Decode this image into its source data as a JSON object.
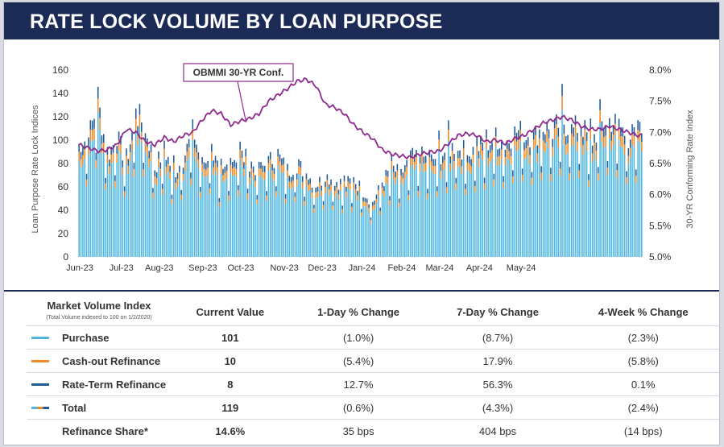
{
  "header": {
    "title": "RATE LOCK VOLUME BY LOAN PURPOSE"
  },
  "chart_data": {
    "type": "bar",
    "title": "RATE LOCK VOLUME BY LOAN PURPOSE",
    "ylabel": "Loan Purpose Rate Lock Indices",
    "y2label": "30-YR Conforming Rate Index",
    "ylim": [
      0,
      160
    ],
    "y2lim": [
      5.0,
      8.0
    ],
    "yticks": [
      "0",
      "20",
      "40",
      "60",
      "80",
      "100",
      "120",
      "140",
      "160"
    ],
    "y2ticks": [
      "5.0%",
      "5.5%",
      "6.0%",
      "6.5%",
      "7.0%",
      "7.5%",
      "8.0%"
    ],
    "xticks": [
      "Jun-23",
      "Jul-23",
      "Aug-23",
      "Sep-23",
      "Oct-23",
      "Nov-23",
      "Dec-23",
      "Jan-24",
      "Feb-24",
      "Mar-24",
      "Apr-24",
      "May-24"
    ],
    "annotation": "OBMMI 30-YR Conf.",
    "stacked": true,
    "grid": false,
    "series_colors": {
      "Purchase": "#4fb6e3",
      "Cash-out Refinance": "#f08a24",
      "Rate-Term Refinance": "#1f5a96",
      "OBMMI 30-YR Conf.": "#8e2a8e"
    },
    "total_anchors": [
      [
        0,
        95
      ],
      [
        5,
        100
      ],
      [
        10,
        130
      ],
      [
        15,
        85
      ],
      [
        20,
        100
      ],
      [
        25,
        80
      ],
      [
        30,
        120
      ],
      [
        35,
        110
      ],
      [
        40,
        75
      ],
      [
        45,
        90
      ],
      [
        50,
        70
      ],
      [
        55,
        82
      ],
      [
        60,
        105
      ],
      [
        65,
        78
      ],
      [
        70,
        90
      ],
      [
        75,
        65
      ],
      [
        80,
        82
      ],
      [
        85,
        86
      ],
      [
        90,
        80
      ],
      [
        95,
        72
      ],
      [
        100,
        80
      ],
      [
        105,
        85
      ],
      [
        110,
        72
      ],
      [
        115,
        78
      ],
      [
        120,
        70
      ],
      [
        125,
        60
      ],
      [
        130,
        68
      ],
      [
        135,
        65
      ],
      [
        140,
        60
      ],
      [
        145,
        65
      ],
      [
        150,
        55
      ],
      [
        155,
        45
      ],
      [
        160,
        62
      ],
      [
        165,
        75
      ],
      [
        170,
        68
      ],
      [
        175,
        82
      ],
      [
        180,
        85
      ],
      [
        185,
        80
      ],
      [
        190,
        85
      ],
      [
        195,
        90
      ],
      [
        200,
        95
      ],
      [
        205,
        85
      ],
      [
        210,
        92
      ],
      [
        215,
        95
      ],
      [
        220,
        100
      ],
      [
        225,
        95
      ],
      [
        230,
        105
      ],
      [
        235,
        105
      ],
      [
        240,
        100
      ],
      [
        245,
        110
      ],
      [
        250,
        105
      ],
      [
        255,
        115
      ],
      [
        260,
        105
      ],
      [
        265,
        112
      ],
      [
        270,
        95
      ],
      [
        275,
        110
      ],
      [
        280,
        115
      ],
      [
        285,
        110
      ],
      [
        290,
        100
      ],
      [
        295,
        105
      ]
    ],
    "rate_anchors": [
      [
        0,
        6.8
      ],
      [
        5,
        6.75
      ],
      [
        10,
        6.7
      ],
      [
        15,
        6.72
      ],
      [
        20,
        6.8
      ],
      [
        25,
        7.05
      ],
      [
        30,
        7.0
      ],
      [
        35,
        6.85
      ],
      [
        40,
        6.8
      ],
      [
        45,
        6.92
      ],
      [
        50,
        6.85
      ],
      [
        55,
        6.95
      ],
      [
        60,
        7.0
      ],
      [
        65,
        7.2
      ],
      [
        70,
        7.35
      ],
      [
        75,
        7.3
      ],
      [
        80,
        7.12
      ],
      [
        85,
        7.18
      ],
      [
        90,
        7.22
      ],
      [
        95,
        7.3
      ],
      [
        100,
        7.5
      ],
      [
        105,
        7.6
      ],
      [
        110,
        7.7
      ],
      [
        115,
        7.82
      ],
      [
        120,
        7.85
      ],
      [
        125,
        7.75
      ],
      [
        130,
        7.45
      ],
      [
        135,
        7.4
      ],
      [
        140,
        7.3
      ],
      [
        145,
        7.12
      ],
      [
        150,
        7.0
      ],
      [
        155,
        6.9
      ],
      [
        160,
        6.72
      ],
      [
        165,
        6.65
      ],
      [
        170,
        6.62
      ],
      [
        175,
        6.6
      ],
      [
        180,
        6.65
      ],
      [
        185,
        6.68
      ],
      [
        190,
        6.7
      ],
      [
        195,
        6.82
      ],
      [
        200,
        6.95
      ],
      [
        205,
        6.98
      ],
      [
        210,
        6.95
      ],
      [
        215,
        6.85
      ],
      [
        220,
        6.88
      ],
      [
        225,
        6.82
      ],
      [
        230,
        6.9
      ],
      [
        235,
        6.95
      ],
      [
        240,
        7.05
      ],
      [
        245,
        7.15
      ],
      [
        250,
        7.2
      ],
      [
        255,
        7.25
      ],
      [
        260,
        7.2
      ],
      [
        265,
        7.1
      ],
      [
        270,
        7.05
      ],
      [
        275,
        7.05
      ],
      [
        280,
        7.1
      ],
      [
        285,
        7.05
      ],
      [
        290,
        7.0
      ],
      [
        295,
        6.95
      ]
    ],
    "purchase_share": 0.85,
    "cashout_share": 0.08
  },
  "table": {
    "headers": [
      "Market Volume Index",
      "Current Value",
      "1-Day % Change",
      "7-Day % Change",
      "4-Week % Change"
    ],
    "header_note": "(Total Volume indexed to 100 on 1/2/2020)",
    "rows": [
      {
        "label": "Purchase",
        "color": "#4fb6e3",
        "values": [
          "101",
          "(1.0%)",
          "(8.7%)",
          "(2.3%)"
        ]
      },
      {
        "label": "Cash-out Refinance",
        "color": "#f08a24",
        "values": [
          "10",
          "(5.4%)",
          "17.9%",
          "(5.8%)"
        ]
      },
      {
        "label": "Rate-Term Refinance",
        "color": "#1f5a96",
        "values": [
          "8",
          "12.7%",
          "56.3%",
          "0.1%"
        ]
      },
      {
        "label": "Total",
        "color": "multi",
        "values": [
          "119",
          "(0.6%)",
          "(4.3%)",
          "(2.4%)"
        ]
      },
      {
        "label": "Refinance Share*",
        "color": "none",
        "values": [
          "14.6%",
          "35 bps",
          "404 bps",
          "(14 bps)"
        ]
      }
    ]
  }
}
